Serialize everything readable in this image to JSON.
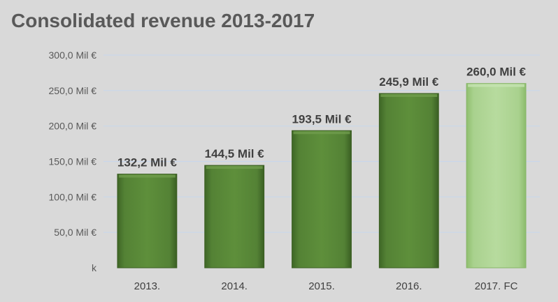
{
  "chart_data": {
    "type": "bar",
    "title": "Consolidated revenue 2013-2017",
    "categories": [
      "2013.",
      "2014.",
      "2015.",
      "2016.",
      "2017. FC"
    ],
    "values": [
      132.2,
      144.5,
      193.5,
      245.9,
      260.0
    ],
    "data_labels": [
      "132,2 Mil €",
      "144,5 Mil €",
      "193,5 Mil €",
      "245,9 Mil €",
      "260,0 Mil €"
    ],
    "ylim": [
      0,
      300
    ],
    "y_ticks": [
      0,
      50,
      100,
      150,
      200,
      250,
      300
    ],
    "y_tick_labels": [
      "k",
      "50,0 Mil €",
      "100,0 Mil €",
      "150,0 Mil €",
      "200,0 Mil €",
      "250,0 Mil €",
      "300,0 Mil €"
    ],
    "xlabel": "",
    "ylabel": "",
    "grid": true,
    "legend": "none",
    "colors": {
      "actual_bar": "#548235",
      "forecast_bar": "#a9d18e",
      "background": "#d9d9d9",
      "gridline": "#c9d7ea"
    },
    "forecast_index": 4
  }
}
